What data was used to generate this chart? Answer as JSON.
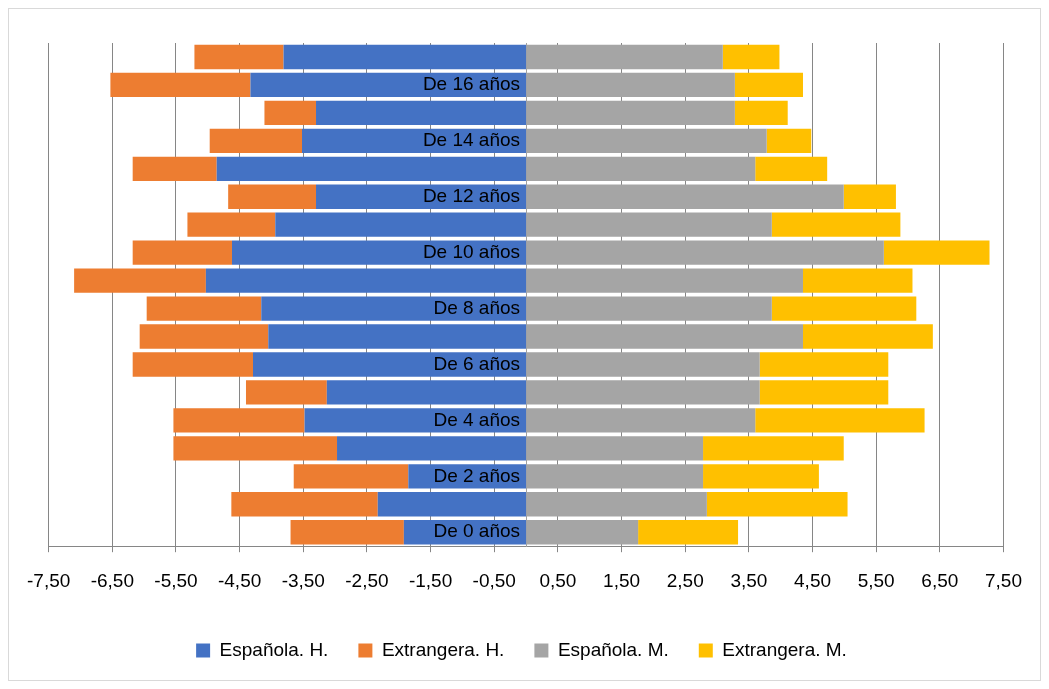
{
  "chart_data": {
    "type": "bar",
    "orientation": "horizontal",
    "stacked": true,
    "categories": [
      null,
      "De 16 años",
      null,
      "De 14 años",
      null,
      "De 12 años",
      null,
      "De 10 años",
      null,
      "De 8 años",
      null,
      "De 6 años",
      null,
      "De 4 años",
      null,
      "De 2 años",
      null,
      "De 0 años"
    ],
    "series": [
      {
        "name": "Española. H.",
        "color": "#4472c4",
        "values": [
          -3.81,
          -4.33,
          -3.3,
          -3.52,
          -4.86,
          -3.3,
          -3.94,
          -4.62,
          -5.03,
          -4.16,
          -4.05,
          -4.29,
          -3.13,
          -3.48,
          -2.97,
          -1.85,
          -2.33,
          -1.92
        ]
      },
      {
        "name": "Extrangera. H.",
        "color": "#ed7d31",
        "values": [
          -1.4,
          -2.2,
          -0.81,
          -1.45,
          -1.32,
          -1.38,
          -1.38,
          -1.56,
          -2.07,
          -1.8,
          -2.02,
          -1.89,
          -1.27,
          -2.06,
          -2.57,
          -1.8,
          -2.3,
          -1.78
        ]
      },
      {
        "name": "Española. M.",
        "color": "#a5a5a5",
        "values": [
          3.09,
          3.28,
          3.28,
          3.78,
          3.6,
          4.99,
          3.86,
          5.62,
          4.35,
          3.86,
          4.35,
          3.67,
          3.67,
          3.6,
          2.78,
          2.78,
          2.84,
          1.76
        ]
      },
      {
        "name": "Extrangera. M.",
        "color": "#ffc000",
        "values": [
          0.89,
          1.07,
          0.83,
          0.7,
          1.13,
          0.82,
          2.02,
          1.66,
          1.72,
          2.27,
          2.04,
          2.02,
          2.02,
          2.66,
          2.21,
          1.82,
          2.21,
          1.57
        ]
      }
    ],
    "xlim": [
      -7.5,
      7.5
    ],
    "xticks": [
      {
        "value": -7.5,
        "label": "-7,50"
      },
      {
        "value": -6.5,
        "label": "-6,50"
      },
      {
        "value": -5.5,
        "label": "-5,50"
      },
      {
        "value": -4.5,
        "label": "-4,50"
      },
      {
        "value": -3.5,
        "label": "-3,50"
      },
      {
        "value": -2.5,
        "label": "-2,50"
      },
      {
        "value": -1.5,
        "label": "-1,50"
      },
      {
        "value": -0.5,
        "label": "-0,50"
      },
      {
        "value": 0.5,
        "label": "0,50"
      },
      {
        "value": 1.5,
        "label": "1,50"
      },
      {
        "value": 2.5,
        "label": "2,50"
      },
      {
        "value": 3.5,
        "label": "3,50"
      },
      {
        "value": 4.5,
        "label": "4,50"
      },
      {
        "value": 5.5,
        "label": "5,50"
      },
      {
        "value": 6.5,
        "label": "6,50"
      },
      {
        "value": 7.5,
        "label": "7,50"
      }
    ],
    "grid": "x",
    "legend": "bottom"
  }
}
